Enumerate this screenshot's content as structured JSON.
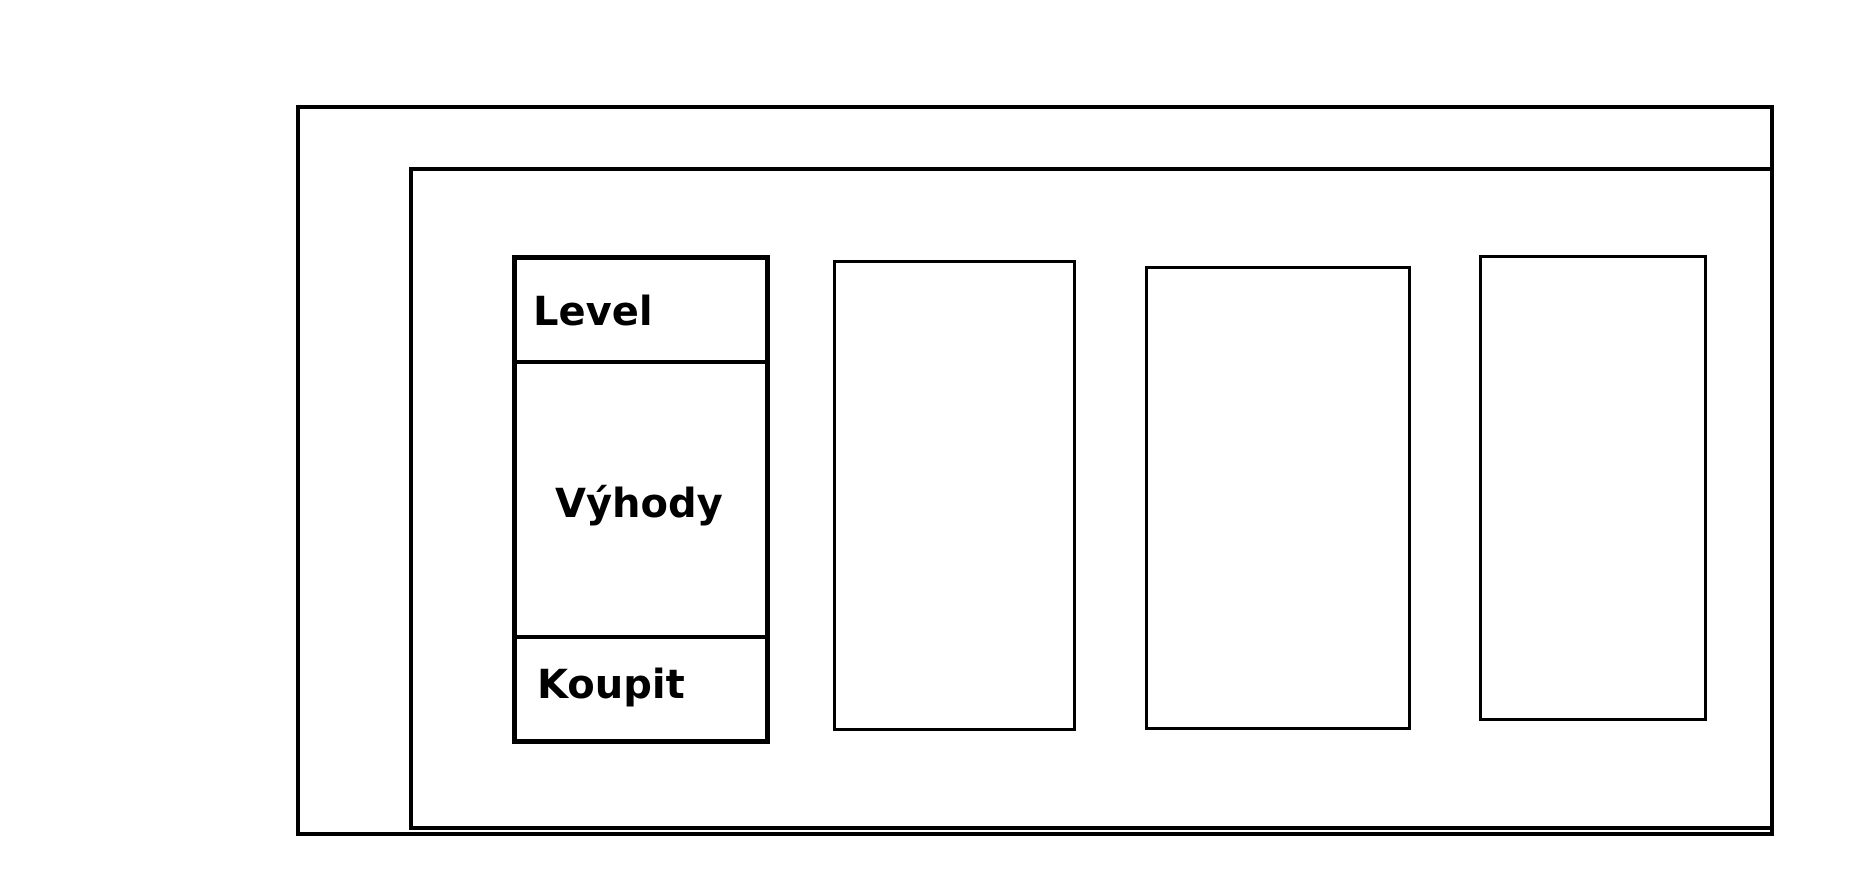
{
  "card_1": {
    "level_label": "Level",
    "benefits_label": "Výhody",
    "buy_label": "Koupit"
  }
}
